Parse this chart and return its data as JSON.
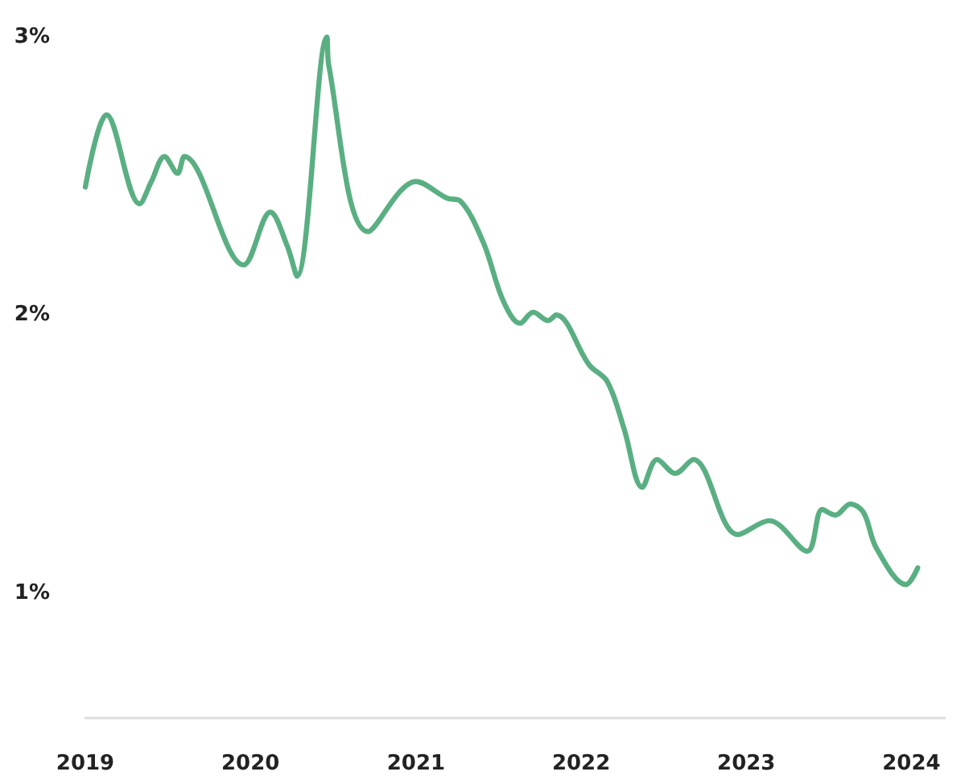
{
  "chart_data": {
    "type": "line",
    "x": [
      "2019-01-01",
      "2019-02-17",
      "2019-05-01",
      "2019-05-27",
      "2019-06-25",
      "2019-07-24",
      "2019-08-08",
      "2019-12-17",
      "2020-02-14",
      "2020-03-22",
      "2020-04-13",
      "2020-06-18",
      "2020-06-22",
      "2020-09-17",
      "2021-01-01",
      "2021-03-11",
      "2021-04-09",
      "2021-05-30",
      "2021-07-13",
      "2021-08-19",
      "2021-09-17",
      "2021-10-20",
      "2021-11-07",
      "2022-01-19",
      "2022-02-28",
      "2022-04-06",
      "2022-05-16",
      "2022-06-18",
      "2022-07-28",
      "2022-09-06",
      "2022-12-13",
      "2023-02-21",
      "2023-05-16",
      "2023-06-18",
      "2023-07-17",
      "2023-08-19",
      "2023-09-17",
      "2023-10-16",
      "2023-12-20",
      "2024-01-15"
    ],
    "series": [
      {
        "color": "#5aaf82",
        "values": [
          2.46,
          2.72,
          2.4,
          2.48,
          2.57,
          2.51,
          2.57,
          2.18,
          2.37,
          2.25,
          2.14,
          3.0,
          2.9,
          2.3,
          2.48,
          2.42,
          2.41,
          2.26,
          2.05,
          1.97,
          2.01,
          1.98,
          2.0,
          1.82,
          1.76,
          1.59,
          1.38,
          1.48,
          1.43,
          1.48,
          1.21,
          1.26,
          1.15,
          1.3,
          1.28,
          1.32,
          1.29,
          1.16,
          1.03,
          1.09
        ]
      }
    ],
    "xlim": [
      "2019-01-01",
      "2024-03-15"
    ],
    "xticks": [
      {
        "value": "2019-01-01",
        "label": "2019"
      },
      {
        "value": "2020-01-01",
        "label": "2020"
      },
      {
        "value": "2021-01-01",
        "label": "2021"
      },
      {
        "value": "2022-01-01",
        "label": "2022"
      },
      {
        "value": "2023-01-01",
        "label": "2023"
      },
      {
        "value": "2024-01-01",
        "label": "2024"
      }
    ],
    "ylim": [
      0.55,
      3
    ],
    "yticks": [
      {
        "value": 1,
        "label": "1%"
      },
      {
        "value": 2,
        "label": "2%"
      },
      {
        "value": 3,
        "label": "3%"
      }
    ],
    "grid": false,
    "marker": "none",
    "line_style": "solid"
  }
}
